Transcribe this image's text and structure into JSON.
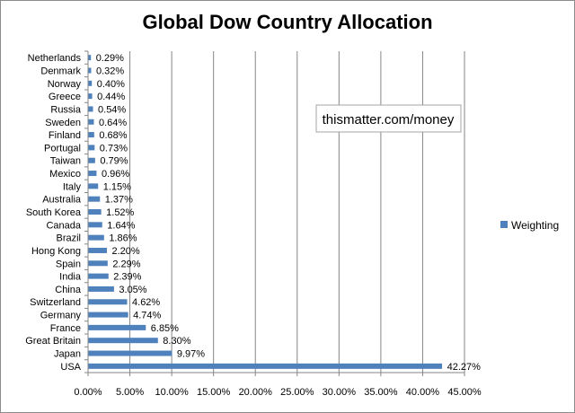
{
  "chart_data": {
    "type": "bar",
    "orientation": "horizontal",
    "title": "Global Dow Country Allocation",
    "categories": [
      "Netherlands",
      "Denmark",
      "Norway",
      "Greece",
      "Russia",
      "Sweden",
      "Finland",
      "Portugal",
      "Taiwan",
      "Mexico",
      "Italy",
      "Australia",
      "South Korea",
      "Canada",
      "Brazil",
      "Hong Kong",
      "Spain",
      "India",
      "China",
      "Switzerland",
      "Germany",
      "France",
      "Great Britain",
      "Japan",
      "USA"
    ],
    "series": [
      {
        "name": "Weighting",
        "color": "#4f81bd",
        "values": [
          0.29,
          0.32,
          0.4,
          0.44,
          0.54,
          0.64,
          0.68,
          0.73,
          0.79,
          0.96,
          1.15,
          1.37,
          1.52,
          1.64,
          1.86,
          2.2,
          2.29,
          2.39,
          3.05,
          4.62,
          4.74,
          6.85,
          8.3,
          9.97,
          42.27
        ]
      }
    ],
    "data_labels": [
      "0.29%",
      "0.32%",
      "0.40%",
      "0.44%",
      "0.54%",
      "0.64%",
      "0.68%",
      "0.73%",
      "0.79%",
      "0.96%",
      "1.15%",
      "1.37%",
      "1.52%",
      "1.64%",
      "1.86%",
      "2.20%",
      "2.29%",
      "2.39%",
      "3.05%",
      "4.62%",
      "4.74%",
      "6.85%",
      "8.30%",
      "9.97%",
      "42.27%"
    ],
    "xlim": [
      0,
      45
    ],
    "xticks": [
      0,
      5,
      10,
      15,
      20,
      25,
      30,
      35,
      40,
      45
    ],
    "xtick_labels": [
      "0.00%",
      "5.00%",
      "10.00%",
      "15.00%",
      "20.00%",
      "25.00%",
      "30.00%",
      "35.00%",
      "40.00%",
      "45.00%"
    ],
    "xlabel": "",
    "ylabel": "",
    "grid": "vertical",
    "legend": "right"
  },
  "watermark": "thismatter.com/money"
}
